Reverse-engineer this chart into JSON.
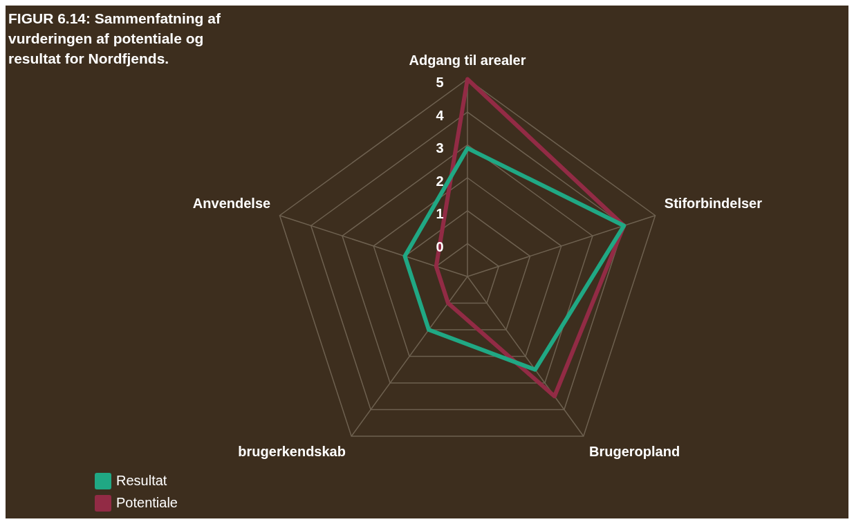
{
  "chart_data": {
    "type": "radar",
    "title": "FIGUR 6.14: Sammenfatning af vurderingen af potentiale og resultat for Nordfjends.",
    "categories": [
      "Adgang til arealer",
      "Stiforbindelser",
      "Brugeropland",
      "brugerkendskab",
      "Anvendelse"
    ],
    "series": [
      {
        "name": "Resultat",
        "color": "#20a884",
        "values": [
          2.9,
          4,
          2.5,
          1,
          1
        ]
      },
      {
        "name": "Potentiale",
        "color": "#922b45",
        "values": [
          5,
          4,
          3.5,
          0,
          0
        ]
      }
    ],
    "ylim": [
      -1,
      5
    ],
    "yticks": [
      0,
      1,
      2,
      3,
      4,
      5
    ],
    "grid": true,
    "legend": "bottom left",
    "marker": "none",
    "line_style": "solid"
  }
}
